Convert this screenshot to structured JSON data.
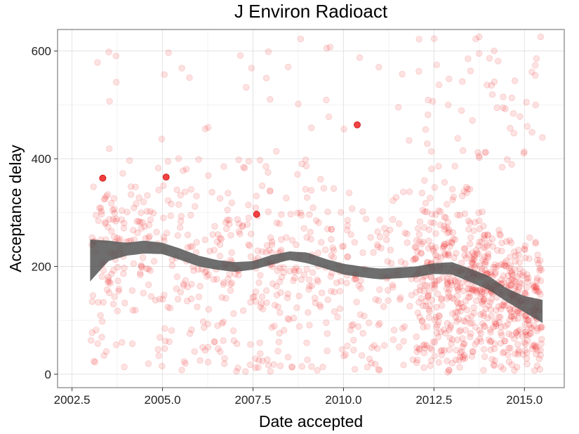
{
  "chart_data": {
    "type": "scatter",
    "title": "J Environ Radioact",
    "xlabel": "Date accepted",
    "ylabel": "Acceptance delay",
    "xlim": [
      2002.1,
      2016.1
    ],
    "ylim": [
      -25,
      640
    ],
    "xticks": [
      2002.5,
      2005.0,
      2007.5,
      2010.0,
      2012.5,
      2015.0
    ],
    "xtick_labels": [
      "2002.5",
      "2005.0",
      "2007.5",
      "2010.0",
      "2012.5",
      "2015.0"
    ],
    "yticks": [
      0,
      200,
      400,
      600
    ],
    "ytick_labels": [
      "0",
      "200",
      "400",
      "600"
    ],
    "grid": true,
    "point_color": "#ee1111",
    "point_alpha": 0.12,
    "highlight_points": [
      {
        "x": 2003.35,
        "y": 364
      },
      {
        "x": 2005.1,
        "y": 366
      },
      {
        "x": 2007.6,
        "y": 297
      },
      {
        "x": 2010.38,
        "y": 463
      }
    ],
    "scatter_generation": {
      "x_start": 2003.0,
      "x_end": 2015.5,
      "count": 1400
    },
    "smooth_line": {
      "color": "#555555",
      "x": [
        2003.0,
        2003.5,
        2004.0,
        2004.5,
        2005.0,
        2005.5,
        2006.0,
        2006.5,
        2007.0,
        2007.5,
        2008.0,
        2008.5,
        2009.0,
        2009.5,
        2010.0,
        2010.5,
        2011.0,
        2011.5,
        2012.0,
        2012.5,
        2013.0,
        2013.5,
        2014.0,
        2014.5,
        2015.0,
        2015.5
      ],
      "y_mid": [
        210,
        228,
        232,
        236,
        234,
        222,
        210,
        203,
        199,
        202,
        212,
        220,
        216,
        205,
        195,
        190,
        186,
        188,
        190,
        196,
        196,
        183,
        170,
        148,
        130,
        115
      ],
      "y_upper": [
        250,
        248,
        244,
        248,
        244,
        233,
        220,
        212,
        208,
        210,
        221,
        228,
        226,
        214,
        205,
        200,
        196,
        198,
        200,
        206,
        208,
        196,
        183,
        160,
        145,
        138
      ],
      "y_lower": [
        172,
        210,
        220,
        224,
        223,
        212,
        200,
        194,
        190,
        194,
        203,
        212,
        206,
        196,
        185,
        180,
        176,
        178,
        180,
        186,
        185,
        171,
        157,
        135,
        115,
        95
      ]
    }
  }
}
